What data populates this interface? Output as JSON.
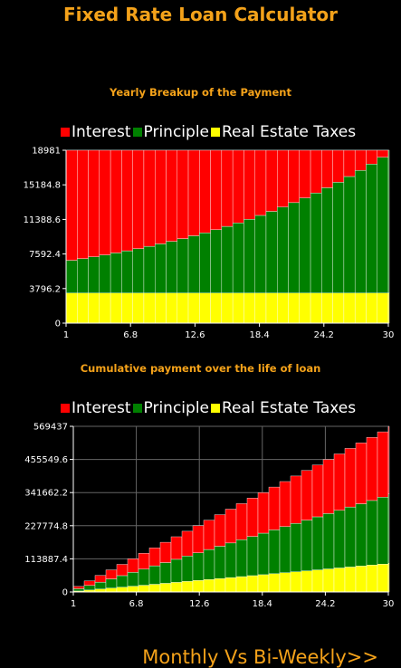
{
  "app": {
    "title": "Fixed Rate Loan Calculator",
    "nav_link": "Monthly Vs Bi-Weekly>>"
  },
  "colors": {
    "interest": "#ff0000",
    "principle": "#008000",
    "taxes": "#ffff00",
    "title": "#f4a21a"
  },
  "legend": [
    {
      "label": "Interest",
      "color": "#ff0000"
    },
    {
      "label": "Principle",
      "color": "#008000"
    },
    {
      "label": "Real Estate Taxes",
      "color": "#ffff00"
    }
  ],
  "chart_data": [
    {
      "type": "area",
      "title": "Yearly Breakup of the Payment",
      "xlabel": "",
      "ylabel": "",
      "x_ticks": [
        "1",
        "6.8",
        "12.6",
        "18.4",
        "24.2",
        "30"
      ],
      "y_ticks": [
        "0",
        "3796.2",
        "7592.4",
        "11388.6",
        "15184.8",
        "18981"
      ],
      "ylim": [
        0,
        18981
      ],
      "xlim": [
        1,
        30
      ],
      "grid": false,
      "stacked": true,
      "series": [
        {
          "name": "Real Estate Taxes",
          "type": "constant",
          "values": [
            3300
          ]
        },
        {
          "name": "Principle",
          "type": "exponential",
          "start": 3600,
          "end": 15681
        },
        {
          "name": "Interest",
          "type": "remainder",
          "total": 18981
        }
      ]
    },
    {
      "type": "area",
      "title": "Cumulative payment over the life of loan",
      "xlabel": "",
      "ylabel": "",
      "x_ticks": [
        "1",
        "6.8",
        "12.6",
        "18.4",
        "24.2",
        "30"
      ],
      "y_ticks": [
        "0",
        "113887.4",
        "227774.8",
        "341662.2",
        "455549.6",
        "569437"
      ],
      "ylim": [
        0,
        569437
      ],
      "xlim": [
        1,
        30
      ],
      "grid": true,
      "stacked": true,
      "series": [
        {
          "name": "Real Estate Taxes",
          "values_at_end": 99000
        },
        {
          "name": "Principle",
          "values_at_end": 238000
        },
        {
          "name": "Interest",
          "values_at_end": 232437
        }
      ]
    }
  ]
}
